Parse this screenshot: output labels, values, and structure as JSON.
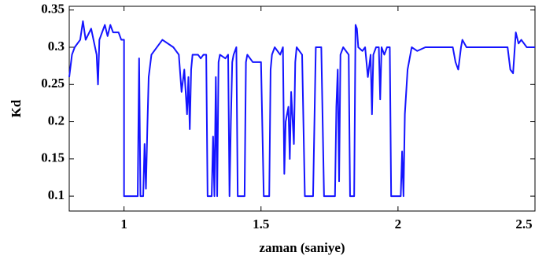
{
  "chart_data": {
    "type": "line",
    "x_label": "zaman (saniye)",
    "y_label": "Kd",
    "color": "#1414ff",
    "x": [
      0.8,
      0.81,
      0.82,
      0.84,
      0.85,
      0.86,
      0.88,
      0.9,
      0.905,
      0.91,
      0.93,
      0.94,
      0.95,
      0.96,
      0.98,
      0.99,
      1.0,
      1.0,
      1.05,
      1.055,
      1.06,
      1.07,
      1.075,
      1.08,
      1.085,
      1.09,
      1.1,
      1.14,
      1.18,
      1.2,
      1.21,
      1.22,
      1.23,
      1.235,
      1.24,
      1.245,
      1.25,
      1.27,
      1.28,
      1.29,
      1.3,
      1.305,
      1.32,
      1.325,
      1.33,
      1.335,
      1.34,
      1.345,
      1.35,
      1.37,
      1.38,
      1.385,
      1.39,
      1.395,
      1.4,
      1.41,
      1.415,
      1.44,
      1.445,
      1.45,
      1.47,
      1.49,
      1.5,
      1.51,
      1.53,
      1.535,
      1.54,
      1.55,
      1.57,
      1.58,
      1.585,
      1.59,
      1.6,
      1.605,
      1.61,
      1.62,
      1.625,
      1.63,
      1.65,
      1.66,
      1.69,
      1.7,
      1.72,
      1.73,
      1.77,
      1.775,
      1.78,
      1.785,
      1.79,
      1.8,
      1.82,
      1.825,
      1.84,
      1.845,
      1.85,
      1.855,
      1.87,
      1.88,
      1.89,
      1.9,
      1.905,
      1.91,
      1.92,
      1.93,
      1.935,
      1.94,
      1.95,
      1.96,
      1.97,
      1.975,
      2.01,
      2.015,
      2.02,
      2.025,
      2.03,
      2.035,
      2.04,
      2.05,
      2.07,
      2.1,
      2.2,
      2.21,
      2.22,
      2.23,
      2.235,
      2.25,
      2.4,
      2.41,
      2.42,
      2.43,
      2.44,
      2.45,
      2.47,
      2.5
    ],
    "values": [
      0.26,
      0.29,
      0.3,
      0.31,
      0.335,
      0.31,
      0.325,
      0.29,
      0.25,
      0.31,
      0.33,
      0.315,
      0.33,
      0.32,
      0.32,
      0.31,
      0.31,
      0.1,
      0.1,
      0.285,
      0.1,
      0.1,
      0.17,
      0.11,
      0.19,
      0.26,
      0.29,
      0.31,
      0.3,
      0.29,
      0.24,
      0.27,
      0.21,
      0.26,
      0.19,
      0.27,
      0.29,
      0.29,
      0.285,
      0.29,
      0.29,
      0.1,
      0.1,
      0.18,
      0.1,
      0.26,
      0.1,
      0.28,
      0.29,
      0.285,
      0.29,
      0.1,
      0.2,
      0.28,
      0.29,
      0.3,
      0.1,
      0.1,
      0.28,
      0.29,
      0.28,
      0.28,
      0.28,
      0.1,
      0.1,
      0.27,
      0.29,
      0.3,
      0.29,
      0.3,
      0.13,
      0.2,
      0.22,
      0.15,
      0.24,
      0.17,
      0.28,
      0.3,
      0.29,
      0.1,
      0.1,
      0.3,
      0.3,
      0.1,
      0.1,
      0.22,
      0.27,
      0.12,
      0.29,
      0.3,
      0.29,
      0.1,
      0.1,
      0.33,
      0.325,
      0.3,
      0.295,
      0.3,
      0.26,
      0.29,
      0.21,
      0.29,
      0.3,
      0.3,
      0.23,
      0.3,
      0.29,
      0.3,
      0.3,
      0.1,
      0.1,
      0.16,
      0.1,
      0.21,
      0.24,
      0.27,
      0.28,
      0.3,
      0.295,
      0.3,
      0.3,
      0.28,
      0.27,
      0.3,
      0.31,
      0.3,
      0.3,
      0.27,
      0.265,
      0.32,
      0.305,
      0.31,
      0.3,
      0.3
    ],
    "xlim": [
      0.8,
      2.5
    ],
    "ylim": [
      0.08,
      0.355
    ],
    "xticks": [
      1,
      1.5,
      2,
      2.5
    ],
    "yticks": [
      0.1,
      0.15,
      0.2,
      0.25,
      0.3,
      0.35
    ]
  }
}
